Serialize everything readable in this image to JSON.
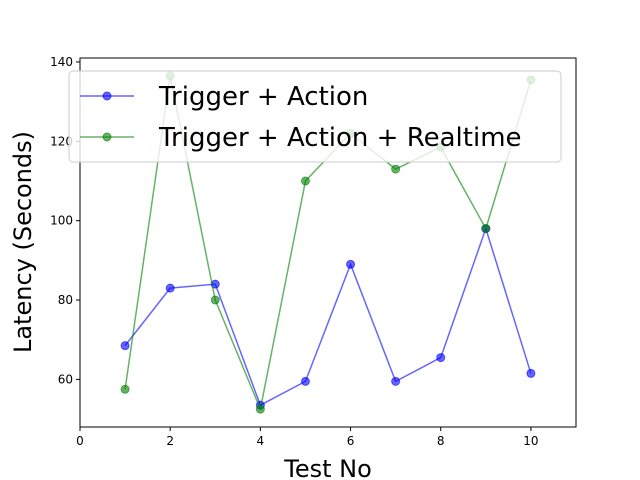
{
  "chart_data": {
    "type": "line",
    "title": "",
    "xlabel": "Test No",
    "ylabel": "Latency (Seconds)",
    "xlim": [
      0,
      11
    ],
    "ylim": [
      48,
      141
    ],
    "xticks": [
      0,
      2,
      4,
      6,
      8,
      10
    ],
    "yticks": [
      60,
      80,
      100,
      120,
      140
    ],
    "grid": false,
    "legend_position": "top",
    "x": [
      1,
      2,
      3,
      4,
      5,
      6,
      7,
      8,
      9,
      10
    ],
    "series": [
      {
        "name": "Trigger + Action",
        "color": "#0000ff",
        "values": [
          68.5,
          83,
          84,
          53.5,
          59.5,
          89,
          59.5,
          65.5,
          98,
          61.5
        ]
      },
      {
        "name": "Trigger + Action + Realtime",
        "color": "#008000",
        "values": [
          57.5,
          136.5,
          80,
          52.5,
          110,
          122,
          113,
          118.5,
          98,
          135.5
        ]
      }
    ]
  }
}
